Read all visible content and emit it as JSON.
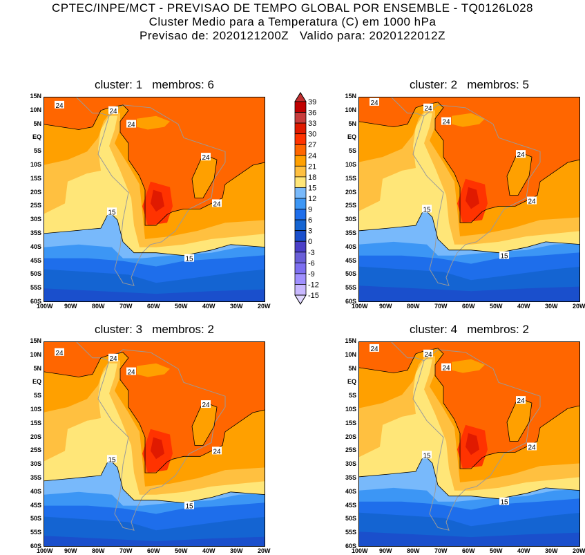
{
  "header": {
    "line1": "CPTEC/INPE/MCT - PREVISAO DE TEMPO GLOBAL POR ENSEMBLE - TQ0126L028",
    "line2": "Cluster Medio para a Temperatura (C) em 1000 hPa",
    "line3": "Previsao de: 2020121200Z   Valido para: 2020122012Z"
  },
  "panels": [
    {
      "title": "cluster: 1   membros: 6"
    },
    {
      "title": "cluster: 2   membros: 5"
    },
    {
      "title": "cluster: 3   membros: 2"
    },
    {
      "title": "cluster: 4   membros: 2"
    }
  ],
  "lat_ticks": [
    "15N",
    "10N",
    "5N",
    "EQ",
    "5S",
    "10S",
    "15S",
    "20S",
    "25S",
    "30S",
    "35S",
    "40S",
    "45S",
    "50S",
    "55S",
    "60S"
  ],
  "lon_ticks": [
    "100W",
    "90W",
    "80W",
    "70W",
    "60W",
    "50W",
    "40W",
    "30W",
    "20W"
  ],
  "contour_labels": {
    "warm": "24",
    "cool": "15"
  },
  "colorbar": {
    "labels": [
      "39",
      "36",
      "33",
      "30",
      "27",
      "24",
      "21",
      "18",
      "15",
      "12",
      "9",
      "6",
      "3",
      "0",
      "-3",
      "-6",
      "-9",
      "-12",
      "-15"
    ],
    "colors": [
      "#c00000",
      "#c83c3c",
      "#e01a00",
      "#ff3300",
      "#ff6600",
      "#ffa000",
      "#ffc040",
      "#ffe678",
      "#78b9fb",
      "#3c96f5",
      "#1e6eeb",
      "#1464d2",
      "#1a4fcc",
      "#4b3fc8",
      "#6a5fd8",
      "#7d6ff0",
      "#a090ff",
      "#c8b8ff"
    ],
    "top_color": "#c03030",
    "bottom_color": "#e0d8ff"
  }
}
